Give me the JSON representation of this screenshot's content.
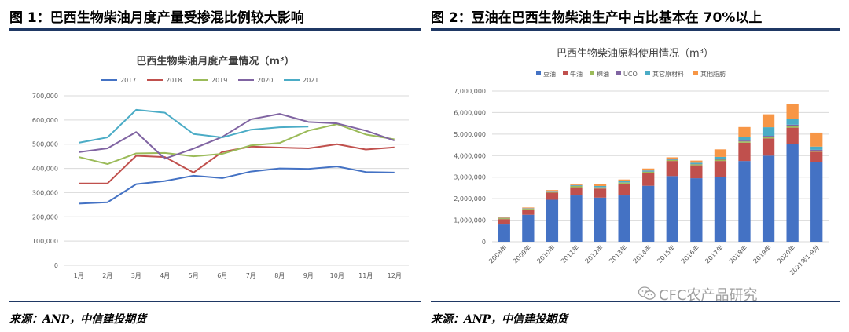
{
  "left_panel": {
    "title": "图 1：巴西生物柴油月度产量受掺混比例较大影响",
    "source": "来源：ANP，中信建投期货"
  },
  "right_panel": {
    "title": "图 2：豆油在巴西生物柴油生产中占比基本在 70%以上",
    "source": "来源：ANP，中信建投期货"
  },
  "watermark": {
    "text": "CFC农产品研究",
    "icon": "wechat-icon"
  },
  "chart_data": [
    {
      "type": "line",
      "title": "巴西生物柴油月度产量情况（m³）",
      "categories": [
        "1月",
        "2月",
        "3月",
        "4月",
        "5月",
        "6月",
        "7月",
        "8月",
        "9月",
        "10月",
        "11月",
        "12月"
      ],
      "yticks": [
        "0",
        "100,000",
        "200,000",
        "300,000",
        "400,000",
        "500,000",
        "600,000",
        "700,000"
      ],
      "ylim": [
        0,
        700000
      ],
      "grid": true,
      "legend": "top",
      "series": [
        {
          "name": "2017",
          "color": "#4472c4",
          "values": [
            255000,
            260000,
            335000,
            348000,
            370000,
            360000,
            387000,
            400000,
            398000,
            408000,
            385000,
            383000
          ]
        },
        {
          "name": "2018",
          "color": "#c0504d",
          "values": [
            338000,
            338000,
            452000,
            447000,
            383000,
            468000,
            490000,
            486000,
            483000,
            500000,
            478000,
            487000
          ]
        },
        {
          "name": "2019",
          "color": "#9bbb59",
          "values": [
            447000,
            418000,
            462000,
            464000,
            450000,
            460000,
            495000,
            505000,
            556000,
            583000,
            540000,
            520000
          ]
        },
        {
          "name": "2020",
          "color": "#8064a2",
          "values": [
            467000,
            483000,
            550000,
            440000,
            482000,
            530000,
            603000,
            625000,
            592000,
            586000,
            556000,
            515000
          ]
        },
        {
          "name": "2021",
          "color": "#4bacc6",
          "values": [
            506000,
            528000,
            642000,
            630000,
            542000,
            528000,
            560000,
            570000,
            573000,
            null,
            null,
            null
          ]
        }
      ]
    },
    {
      "type": "bar",
      "stacked": true,
      "title": "巴西生物柴油原料使用情况（m³）",
      "categories": [
        "2008年",
        "2009年",
        "2010年",
        "2011年",
        "2012年",
        "2013年",
        "2014年",
        "2015年",
        "2016年",
        "2017年",
        "2018年",
        "2019年",
        "2020年",
        "2021年1-9月"
      ],
      "yticks": [
        "0",
        "1,000,000",
        "2,000,000",
        "3,000,000",
        "4,000,000",
        "5,000,000",
        "6,000,000",
        "7,000,000"
      ],
      "ylim": [
        0,
        7000000
      ],
      "grid": true,
      "legend": "top",
      "series": [
        {
          "name": "豆油",
          "color": "#4472c4",
          "values": [
            800000,
            1250000,
            1950000,
            2150000,
            2050000,
            2150000,
            2600000,
            3050000,
            2950000,
            3000000,
            3750000,
            4000000,
            4550000,
            3700000
          ]
        },
        {
          "name": "牛油",
          "color": "#c0504d",
          "values": [
            250000,
            250000,
            330000,
            380000,
            420000,
            550000,
            600000,
            700000,
            600000,
            750000,
            850000,
            800000,
            750000,
            480000
          ]
        },
        {
          "name": "棉油",
          "color": "#9bbb59",
          "values": [
            40000,
            40000,
            50000,
            60000,
            60000,
            50000,
            50000,
            50000,
            50000,
            60000,
            60000,
            70000,
            80000,
            50000
          ]
        },
        {
          "name": "UCO",
          "color": "#8064a2",
          "values": [
            10000,
            10000,
            10000,
            10000,
            10000,
            10000,
            10000,
            10000,
            10000,
            30000,
            40000,
            50000,
            60000,
            40000
          ]
        },
        {
          "name": "其它原材料",
          "color": "#4bacc6",
          "values": [
            10000,
            10000,
            20000,
            30000,
            50000,
            50000,
            50000,
            50000,
            60000,
            100000,
            180000,
            400000,
            250000,
            150000
          ]
        },
        {
          "name": "其他脂肪",
          "color": "#f79646",
          "values": [
            30000,
            30000,
            40000,
            50000,
            100000,
            80000,
            90000,
            60000,
            100000,
            350000,
            450000,
            600000,
            700000,
            650000
          ]
        }
      ]
    }
  ]
}
